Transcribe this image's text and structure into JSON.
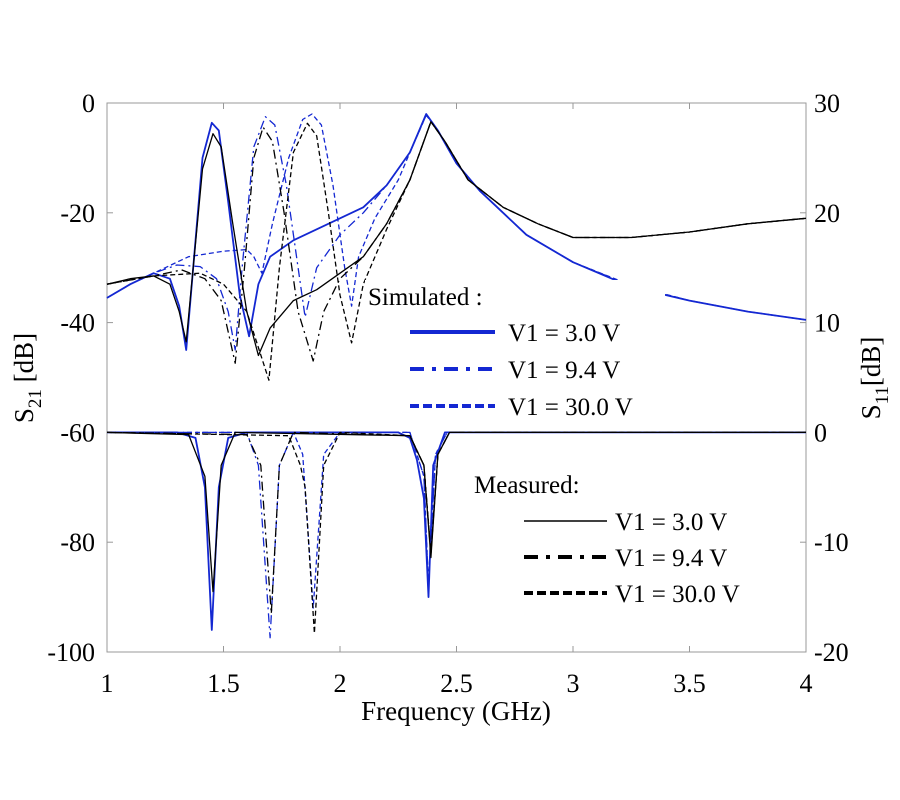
{
  "chart_data": {
    "type": "line",
    "xlabel": "Frequency (GHz)",
    "ylabel_left": {
      "base": "S",
      "sub": "21",
      "unit": " [dB]"
    },
    "ylabel_right": {
      "base": "S",
      "sub": "11",
      "unit": "[dB]"
    },
    "xlim": [
      1,
      4
    ],
    "ylim_left": [
      -100,
      0
    ],
    "ylim_right": [
      -20,
      30
    ],
    "xticks": [
      "1",
      "1.5",
      "2",
      "2.5",
      "3",
      "3.5",
      "4"
    ],
    "yticks_left": [
      "0",
      "-20",
      "-40",
      "-60",
      "-80",
      "-100"
    ],
    "yticks_right": [
      "30",
      "20",
      "10",
      "0",
      "-10",
      "-20"
    ],
    "grid": false,
    "colors": {
      "simulated": "#1428d2",
      "measured": "#000000"
    },
    "legend": {
      "simulated_title": "Simulated :",
      "measured_title": "Measured:",
      "placement": "center-right"
    },
    "series": [
      {
        "name": "V1 = 3.0 V",
        "group": "Simulated",
        "style": "solid",
        "S21": [
          [
            1,
            -35.5
          ],
          [
            1.1,
            -33
          ],
          [
            1.2,
            -31
          ],
          [
            1.27,
            -32
          ],
          [
            1.31,
            -37
          ],
          [
            1.34,
            -45
          ],
          [
            1.37,
            -30
          ],
          [
            1.41,
            -10
          ],
          [
            1.45,
            -3.6
          ],
          [
            1.48,
            -5
          ],
          [
            1.52,
            -18
          ],
          [
            1.57,
            -35
          ],
          [
            1.61,
            -42.5
          ],
          [
            1.65,
            -33
          ],
          [
            1.7,
            -28
          ],
          [
            1.8,
            -25
          ],
          [
            1.9,
            -23
          ],
          [
            2.0,
            -21
          ],
          [
            2.1,
            -19
          ],
          [
            2.2,
            -15
          ],
          [
            2.3,
            -9
          ],
          [
            2.37,
            -2
          ],
          [
            2.42,
            -5
          ],
          [
            2.5,
            -11
          ],
          [
            2.6,
            -16
          ],
          [
            2.8,
            -24
          ],
          [
            3.0,
            -29
          ],
          [
            3.25,
            -33.5
          ],
          [
            3.5,
            -36
          ],
          [
            3.75,
            -38
          ],
          [
            4,
            -39.5
          ]
        ],
        "S11": [
          [
            1,
            0
          ],
          [
            1.3,
            0
          ],
          [
            1.38,
            -0.5
          ],
          [
            1.42,
            -5
          ],
          [
            1.45,
            -18
          ],
          [
            1.48,
            -5
          ],
          [
            1.52,
            -0.5
          ],
          [
            1.6,
            0
          ],
          [
            2.25,
            0
          ],
          [
            2.3,
            -0.5
          ],
          [
            2.33,
            -2.5
          ],
          [
            2.36,
            -6
          ],
          [
            2.38,
            -15
          ],
          [
            2.4,
            -3
          ],
          [
            2.45,
            0
          ],
          [
            4,
            0
          ]
        ]
      },
      {
        "name": "V1 = 9.4 V",
        "group": "Simulated",
        "style": "dashdot",
        "S21": [
          [
            1,
            -35.5
          ],
          [
            1.1,
            -33
          ],
          [
            1.2,
            -31
          ],
          [
            1.3,
            -29.5
          ],
          [
            1.4,
            -29.8
          ],
          [
            1.47,
            -32
          ],
          [
            1.52,
            -38
          ],
          [
            1.55,
            -45
          ],
          [
            1.58,
            -30
          ],
          [
            1.63,
            -8
          ],
          [
            1.68,
            -2.5
          ],
          [
            1.72,
            -4
          ],
          [
            1.77,
            -15
          ],
          [
            1.82,
            -30
          ],
          [
            1.85,
            -39
          ],
          [
            1.9,
            -30
          ],
          [
            2.0,
            -24
          ],
          [
            2.1,
            -20
          ],
          [
            2.2,
            -15
          ],
          [
            2.3,
            -9
          ],
          [
            2.37,
            -2.2
          ],
          [
            2.42,
            -5
          ],
          [
            2.5,
            -11
          ],
          [
            2.6,
            -16
          ],
          [
            2.8,
            -24
          ],
          [
            3.0,
            -29
          ],
          [
            3.25,
            -33.3
          ],
          [
            3.5,
            -36
          ],
          [
            3.75,
            -38
          ],
          [
            4,
            -39.5
          ]
        ],
        "S11": [
          [
            1,
            0
          ],
          [
            1.6,
            0
          ],
          [
            1.65,
            -3
          ],
          [
            1.7,
            -18.7
          ],
          [
            1.74,
            -3
          ],
          [
            1.8,
            0
          ],
          [
            2.3,
            0
          ],
          [
            2.36,
            -4
          ],
          [
            2.38,
            -14
          ],
          [
            2.41,
            -2
          ],
          [
            2.46,
            0
          ],
          [
            4,
            0
          ]
        ]
      },
      {
        "name": "V1 = 30.0 V",
        "group": "Simulated",
        "style": "dashed",
        "S21": [
          [
            1,
            -35.5
          ],
          [
            1.1,
            -33
          ],
          [
            1.2,
            -31
          ],
          [
            1.35,
            -28
          ],
          [
            1.5,
            -27
          ],
          [
            1.6,
            -26.7
          ],
          [
            1.63,
            -28
          ],
          [
            1.665,
            -31
          ],
          [
            1.71,
            -22
          ],
          [
            1.78,
            -10
          ],
          [
            1.84,
            -3
          ],
          [
            1.88,
            -2
          ],
          [
            1.92,
            -4
          ],
          [
            1.97,
            -15
          ],
          [
            2.02,
            -30
          ],
          [
            2.05,
            -37
          ],
          [
            2.08,
            -28
          ],
          [
            2.15,
            -21
          ],
          [
            2.25,
            -14
          ],
          [
            2.3,
            -9
          ],
          [
            2.37,
            -2.2
          ],
          [
            2.42,
            -5
          ],
          [
            2.5,
            -11
          ],
          [
            2.6,
            -16
          ],
          [
            2.8,
            -24
          ],
          [
            3.0,
            -29
          ],
          [
            3.25,
            -33.2
          ],
          [
            3.5,
            -36
          ],
          [
            3.75,
            -38
          ],
          [
            4,
            -39.5
          ]
        ],
        "S11": [
          [
            1,
            0
          ],
          [
            1.8,
            0
          ],
          [
            1.84,
            -2
          ],
          [
            1.885,
            -16
          ],
          [
            1.93,
            -2
          ],
          [
            2.0,
            0
          ],
          [
            2.3,
            0
          ],
          [
            2.36,
            -4
          ],
          [
            2.38,
            -14
          ],
          [
            2.41,
            -2
          ],
          [
            2.46,
            0
          ],
          [
            4,
            0
          ]
        ]
      },
      {
        "name": "V1 = 3.0 V",
        "group": "Measured",
        "style": "solid",
        "S21": [
          [
            1,
            -33
          ],
          [
            1.1,
            -32
          ],
          [
            1.2,
            -31.5
          ],
          [
            1.27,
            -33
          ],
          [
            1.31,
            -38
          ],
          [
            1.34,
            -43.5
          ],
          [
            1.37,
            -30
          ],
          [
            1.41,
            -12
          ],
          [
            1.455,
            -5.6
          ],
          [
            1.49,
            -8
          ],
          [
            1.54,
            -22
          ],
          [
            1.6,
            -38
          ],
          [
            1.65,
            -46
          ],
          [
            1.7,
            -41
          ],
          [
            1.8,
            -36
          ],
          [
            1.9,
            -34
          ],
          [
            2.0,
            -31
          ],
          [
            2.1,
            -28
          ],
          [
            2.2,
            -22
          ],
          [
            2.3,
            -14
          ],
          [
            2.39,
            -3.4
          ],
          [
            2.45,
            -7
          ],
          [
            2.55,
            -14
          ],
          [
            2.7,
            -19
          ],
          [
            2.85,
            -22
          ],
          [
            3.0,
            -24.5
          ],
          [
            3.25,
            -24.5
          ],
          [
            3.5,
            -23.5
          ],
          [
            3.75,
            -22
          ],
          [
            4,
            -21
          ]
        ],
        "S11": [
          [
            1,
            0
          ],
          [
            1.35,
            -0.2
          ],
          [
            1.42,
            -4
          ],
          [
            1.455,
            -14.5
          ],
          [
            1.49,
            -3
          ],
          [
            1.55,
            0
          ],
          [
            2.3,
            -0.3
          ],
          [
            2.36,
            -3
          ],
          [
            2.39,
            -11.4
          ],
          [
            2.42,
            -2
          ],
          [
            2.47,
            0
          ],
          [
            4,
            0
          ]
        ]
      },
      {
        "name": "V1 = 9.4 V",
        "group": "Measured",
        "style": "dashdot",
        "S21": [
          [
            1,
            -33
          ],
          [
            1.2,
            -31.5
          ],
          [
            1.32,
            -30.4
          ],
          [
            1.42,
            -32
          ],
          [
            1.49,
            -36
          ],
          [
            1.55,
            -47.4
          ],
          [
            1.59,
            -30
          ],
          [
            1.63,
            -10
          ],
          [
            1.67,
            -4.4
          ],
          [
            1.71,
            -7
          ],
          [
            1.76,
            -20
          ],
          [
            1.82,
            -38
          ],
          [
            1.885,
            -47
          ],
          [
            1.93,
            -38
          ],
          [
            2.0,
            -32
          ],
          [
            2.1,
            -28
          ],
          [
            2.2,
            -22
          ],
          [
            2.3,
            -14
          ],
          [
            2.39,
            -3.4
          ],
          [
            2.45,
            -7
          ],
          [
            2.55,
            -14
          ],
          [
            2.7,
            -19
          ],
          [
            2.85,
            -22
          ],
          [
            3.0,
            -24.5
          ],
          [
            3.25,
            -24.5
          ],
          [
            3.5,
            -23.5
          ],
          [
            3.75,
            -22
          ],
          [
            4,
            -21
          ]
        ],
        "S11": [
          [
            1,
            0
          ],
          [
            1.6,
            -0.2
          ],
          [
            1.66,
            -3
          ],
          [
            1.705,
            -16.5
          ],
          [
            1.74,
            -3
          ],
          [
            1.8,
            0
          ],
          [
            2.3,
            -0.3
          ],
          [
            2.36,
            -3
          ],
          [
            2.39,
            -11
          ],
          [
            2.42,
            -2
          ],
          [
            2.47,
            0
          ],
          [
            4,
            0
          ]
        ]
      },
      {
        "name": "V1 = 30.0 V",
        "group": "Measured",
        "style": "dashed",
        "S21": [
          [
            1,
            -33
          ],
          [
            1.2,
            -31.5
          ],
          [
            1.4,
            -31
          ],
          [
            1.5,
            -33
          ],
          [
            1.6,
            -38
          ],
          [
            1.695,
            -50.5
          ],
          [
            1.74,
            -30
          ],
          [
            1.8,
            -9
          ],
          [
            1.86,
            -3.7
          ],
          [
            1.9,
            -6
          ],
          [
            1.95,
            -20
          ],
          [
            2.0,
            -35
          ],
          [
            2.05,
            -43.7
          ],
          [
            2.1,
            -33
          ],
          [
            2.2,
            -23
          ],
          [
            2.3,
            -14
          ],
          [
            2.39,
            -3.4
          ],
          [
            2.45,
            -7
          ],
          [
            2.55,
            -14
          ],
          [
            2.7,
            -19
          ],
          [
            2.85,
            -22
          ],
          [
            3.0,
            -24.5
          ],
          [
            3.25,
            -24.5
          ],
          [
            3.5,
            -23.5
          ],
          [
            3.75,
            -22
          ],
          [
            4,
            -21
          ]
        ],
        "S11": [
          [
            1,
            0
          ],
          [
            1.78,
            -0.3
          ],
          [
            1.83,
            -3
          ],
          [
            1.85,
            -5
          ],
          [
            1.89,
            -18.3
          ],
          [
            1.93,
            -3
          ],
          [
            2.0,
            0
          ],
          [
            2.3,
            -0.3
          ],
          [
            2.36,
            -3
          ],
          [
            2.39,
            -11
          ],
          [
            2.42,
            -2
          ],
          [
            2.47,
            0
          ],
          [
            4,
            0
          ]
        ]
      }
    ]
  }
}
